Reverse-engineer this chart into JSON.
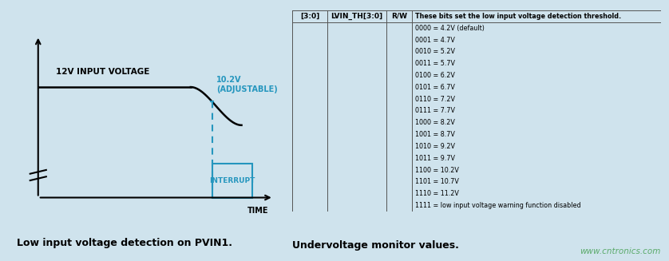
{
  "bg_color": "#cfe3ed",
  "table_bg": "#ffffff",
  "fig_width": 8.38,
  "fig_height": 3.27,
  "left_caption": "Low input voltage detection on PVIN1.",
  "right_caption": "Undervoltage monitor values.",
  "watermark": "www.cntronics.com",
  "table_col1": "[3:0]",
  "table_col2": "LVIN_TH[3:0]",
  "table_col3": "R/W",
  "table_description_header": "These bits set the low input voltage detection threshold.",
  "table_rows": [
    "0000 = 4.2V (default)",
    "0001 = 4.7V",
    "0010 = 5.2V",
    "0011 = 5.7V",
    "0100 = 6.2V",
    "0101 = 6.7V",
    "0110 = 7.2V",
    "0111 = 7.7V",
    "1000 = 8.2V",
    "1001 = 8.7V",
    "1010 = 9.2V",
    "1011 = 9.7V",
    "1100 = 10.2V",
    "1101 = 10.7V",
    "1110 = 11.2V",
    "1111 = low input voltage warning function disabled"
  ],
  "signal_label": "12V INPUT VOLTAGE",
  "threshold_label": "10.2V\n(ADJUSTABLE)",
  "interrupt_label": "INTERRUPT",
  "time_label": "TIME",
  "cyan_color": "#2596be",
  "line_color": "#000000",
  "text_color": "#000000",
  "table_line_color": "#555555",
  "watermark_color": "#5aaa6a"
}
